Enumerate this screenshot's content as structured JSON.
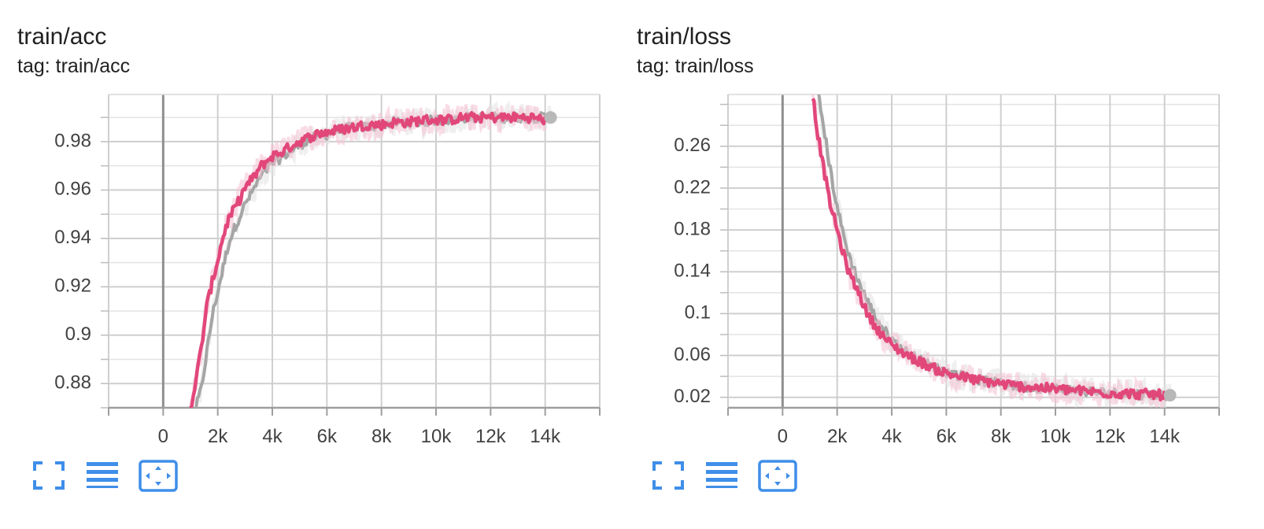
{
  "colors": {
    "smoothed": "#e2477a",
    "raw": "#f4c1d2",
    "baseline": "#a5a5a5",
    "baseline_raw": "#e2e2e2",
    "icon": "#3f8ee9",
    "grid": "#cfcfcf",
    "zero_axis": "#8f8f8f"
  },
  "icons": [
    "fullscreen-icon",
    "log-scale-lines-icon",
    "fit-domain-icon"
  ],
  "chart_data": [
    {
      "type": "line",
      "title": "train/acc",
      "subtitle": "tag: train/acc",
      "xlim": [
        -2000,
        16000
      ],
      "ylim": [
        0.87,
        0.9995
      ],
      "x_ticks": [
        0,
        2000,
        4000,
        6000,
        8000,
        10000,
        12000,
        14000
      ],
      "x_tick_labels": [
        "0",
        "2k",
        "4k",
        "6k",
        "8k",
        "10k",
        "12k",
        "14k"
      ],
      "y_ticks": [
        0.88,
        0.9,
        0.92,
        0.94,
        0.96,
        0.98
      ],
      "y_tick_labels": [
        "0.88",
        "0.9",
        "0.92",
        "0.94",
        "0.96",
        "0.98"
      ],
      "grid": true,
      "series": [
        {
          "style": "smoothed",
          "x": [
            1000,
            1200,
            1400,
            1600,
            1800,
            2000,
            2200,
            2400,
            2600,
            2800,
            3000,
            3300,
            3600,
            4000,
            4400,
            4800,
            5200,
            5600,
            6000,
            6500,
            7000,
            7500,
            8000,
            8500,
            9000,
            9500,
            10000,
            10500,
            11000,
            11500,
            12000,
            12500,
            13000,
            13500,
            14000
          ],
          "y": [
            0.87,
            0.881,
            0.895,
            0.912,
            0.922,
            0.931,
            0.941,
            0.948,
            0.952,
            0.956,
            0.961,
            0.965,
            0.97,
            0.974,
            0.976,
            0.979,
            0.981,
            0.983,
            0.984,
            0.985,
            0.986,
            0.987,
            0.987,
            0.988,
            0.988,
            0.989,
            0.989,
            0.989,
            0.99,
            0.99,
            0.99,
            0.99,
            0.99,
            0.99,
            0.989
          ]
        },
        {
          "style": "baseline",
          "x": [
            1200,
            1400,
            1600,
            1800,
            2000,
            2200,
            2400,
            2600,
            2800,
            3000,
            3300,
            3600,
            4000,
            4400,
            4800,
            5200,
            5600,
            6000,
            6500,
            7000,
            7500,
            8000,
            8500,
            9000,
            9500,
            10000,
            10500,
            11000,
            11500,
            12000,
            12500,
            13000,
            13500,
            14000,
            14200
          ],
          "y": [
            0.87,
            0.878,
            0.893,
            0.908,
            0.918,
            0.928,
            0.938,
            0.944,
            0.949,
            0.954,
            0.96,
            0.966,
            0.971,
            0.974,
            0.977,
            0.98,
            0.982,
            0.983,
            0.985,
            0.986,
            0.986,
            0.987,
            0.988,
            0.988,
            0.988,
            0.989,
            0.989,
            0.99,
            0.99,
            0.99,
            0.99,
            0.99,
            0.99,
            0.99,
            0.99
          ]
        }
      ]
    },
    {
      "type": "line",
      "title": "train/loss",
      "subtitle": "tag: train/loss",
      "xlim": [
        -2000,
        16000
      ],
      "ylim": [
        0.01,
        0.3095
      ],
      "x_ticks": [
        0,
        2000,
        4000,
        6000,
        8000,
        10000,
        12000,
        14000
      ],
      "x_tick_labels": [
        "0",
        "2k",
        "4k",
        "6k",
        "8k",
        "10k",
        "12k",
        "14k"
      ],
      "y_ticks": [
        0.02,
        0.06,
        0.1,
        0.14,
        0.18,
        0.22,
        0.26
      ],
      "y_tick_labels": [
        "0.02",
        "0.06",
        "0.1",
        "0.14",
        "0.18",
        "0.22",
        "0.26"
      ],
      "grid": true,
      "series": [
        {
          "style": "smoothed",
          "x": [
            1100,
            1300,
            1500,
            1700,
            1900,
            2100,
            2300,
            2500,
            2800,
            3100,
            3400,
            3700,
            4000,
            4400,
            4800,
            5200,
            5600,
            6000,
            6500,
            7000,
            7500,
            8000,
            8500,
            9000,
            9500,
            10000,
            10500,
            11000,
            11500,
            12000,
            12500,
            13000,
            13500,
            14000
          ],
          "y": [
            0.31,
            0.27,
            0.24,
            0.21,
            0.19,
            0.17,
            0.15,
            0.135,
            0.12,
            0.1,
            0.088,
            0.078,
            0.07,
            0.063,
            0.057,
            0.052,
            0.047,
            0.043,
            0.04,
            0.037,
            0.035,
            0.033,
            0.031,
            0.03,
            0.029,
            0.028,
            0.027,
            0.026,
            0.025,
            0.024,
            0.024,
            0.023,
            0.023,
            0.022
          ]
        },
        {
          "style": "baseline",
          "x": [
            1300,
            1500,
            1700,
            1900,
            2100,
            2300,
            2500,
            2800,
            3100,
            3400,
            3700,
            4000,
            4400,
            4800,
            5200,
            5600,
            6000,
            6500,
            7000,
            7500,
            8000,
            8500,
            9000,
            9500,
            10000,
            10500,
            11000,
            11500,
            12000,
            12500,
            13000,
            13500,
            14000,
            14200
          ],
          "y": [
            0.31,
            0.28,
            0.245,
            0.215,
            0.19,
            0.168,
            0.15,
            0.13,
            0.112,
            0.097,
            0.085,
            0.075,
            0.066,
            0.059,
            0.053,
            0.048,
            0.044,
            0.041,
            0.038,
            0.035,
            0.033,
            0.031,
            0.03,
            0.029,
            0.028,
            0.027,
            0.026,
            0.025,
            0.024,
            0.024,
            0.023,
            0.023,
            0.022,
            0.022
          ]
        }
      ]
    }
  ]
}
